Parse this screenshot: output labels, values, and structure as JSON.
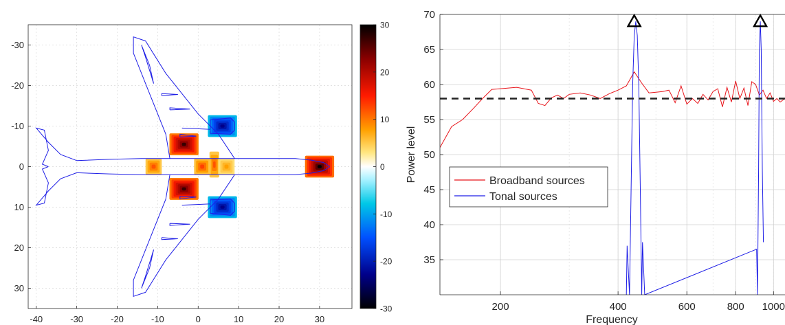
{
  "chart_data": [
    {
      "type": "heatmap",
      "title": "",
      "xlabel": "",
      "ylabel": "",
      "xlim": [
        -42,
        38
      ],
      "ylim": [
        -35,
        35
      ],
      "y_reversed": true,
      "x_ticks": [
        -40,
        -30,
        -20,
        -10,
        0,
        10,
        20,
        30
      ],
      "y_ticks": [
        -30,
        -20,
        -10,
        0,
        10,
        20,
        30
      ],
      "grid": true,
      "colormap": "hot-cold diverging (black-blue-cyan-white-yellow-red-black)",
      "colorbar": {
        "range": [
          -30,
          30
        ],
        "ticks": [
          30,
          20,
          10,
          0,
          -10,
          -20,
          -30
        ],
        "position": "right"
      },
      "outline": "aircraft planform (blue line), nose at x=+32, tail at x=-40",
      "outline_color": "#1f1fe6",
      "sources": [
        {
          "x": 30,
          "y": 0,
          "value": 30
        },
        {
          "x": -3.5,
          "y": -5.5,
          "value": 28
        },
        {
          "x": -3.5,
          "y": 5.5,
          "value": 28
        },
        {
          "x": 6,
          "y": -10,
          "value": -25
        },
        {
          "x": 6,
          "y": 10,
          "value": -25
        },
        {
          "x": -11,
          "y": 0,
          "value": 12
        },
        {
          "x": 1,
          "y": 0,
          "value": 13
        },
        {
          "x": 4,
          "y": -0.5,
          "value": 12
        },
        {
          "x": 7,
          "y": 0,
          "value": 8
        }
      ]
    },
    {
      "type": "line",
      "title": "",
      "xlabel": "Frequency",
      "ylabel": "Power level",
      "x_scale": "log",
      "xlim": [
        140,
        1070
      ],
      "ylim": [
        30,
        70
      ],
      "x_ticks": [
        200,
        400,
        600,
        800,
        1000
      ],
      "x_tick_labels": [
        "200",
        "400",
        "600",
        "800",
        "1000"
      ],
      "y_ticks": [
        35,
        40,
        45,
        50,
        55,
        60,
        65,
        70
      ],
      "grid": true,
      "legend": {
        "position": "left-middle"
      },
      "series": [
        {
          "name": "Broadband sources",
          "color": "#e8141a",
          "x": [
            140,
            150,
            160,
            170,
            180,
            190,
            200,
            220,
            240,
            250,
            260,
            270,
            280,
            290,
            300,
            320,
            340,
            360,
            380,
            400,
            420,
            440,
            460,
            480,
            500,
            520,
            540,
            560,
            580,
            600,
            620,
            640,
            660,
            680,
            700,
            720,
            740,
            760,
            780,
            800,
            820,
            840,
            860,
            880,
            900,
            920,
            940,
            960,
            980,
            1000,
            1020,
            1040,
            1070
          ],
          "y": [
            51,
            54,
            55,
            56.5,
            58,
            59.3,
            59.4,
            59.6,
            59.2,
            57.3,
            57.0,
            58.1,
            58.5,
            58.0,
            58.6,
            58.8,
            58.5,
            58.0,
            58.7,
            59.2,
            59.8,
            61.8,
            60.2,
            58.8,
            58.9,
            59.0,
            59.2,
            57.4,
            59.8,
            57.2,
            58.0,
            57.3,
            58.6,
            57.8,
            59.0,
            59.4,
            56.8,
            59.6,
            57.5,
            60.5,
            58.0,
            59.5,
            57.0,
            60.4,
            60.0,
            58.5,
            59.2,
            58.0,
            58.8,
            57.6,
            58.0,
            57.5,
            58.0
          ]
        },
        {
          "name": "Tonal sources",
          "color": "#1f1fe6",
          "x": [
            420,
            422,
            428,
            432,
            436,
            440,
            444,
            448,
            452,
            456,
            460,
            462,
            468,
            905,
            910,
            916,
            920,
            925,
            930,
            936,
            942
          ],
          "y": [
            30,
            37,
            30,
            45,
            60,
            67,
            69,
            67,
            60,
            45,
            30,
            37.5,
            30,
            36.5,
            30,
            48,
            65,
            69,
            65,
            48,
            37.5
          ]
        }
      ],
      "reference_line": {
        "y": 58,
        "style": "dashed",
        "color": "#262626"
      },
      "markers": [
        {
          "x": 440,
          "y": 69,
          "shape": "triangle"
        },
        {
          "x": 925,
          "y": 69,
          "shape": "triangle"
        }
      ]
    }
  ]
}
